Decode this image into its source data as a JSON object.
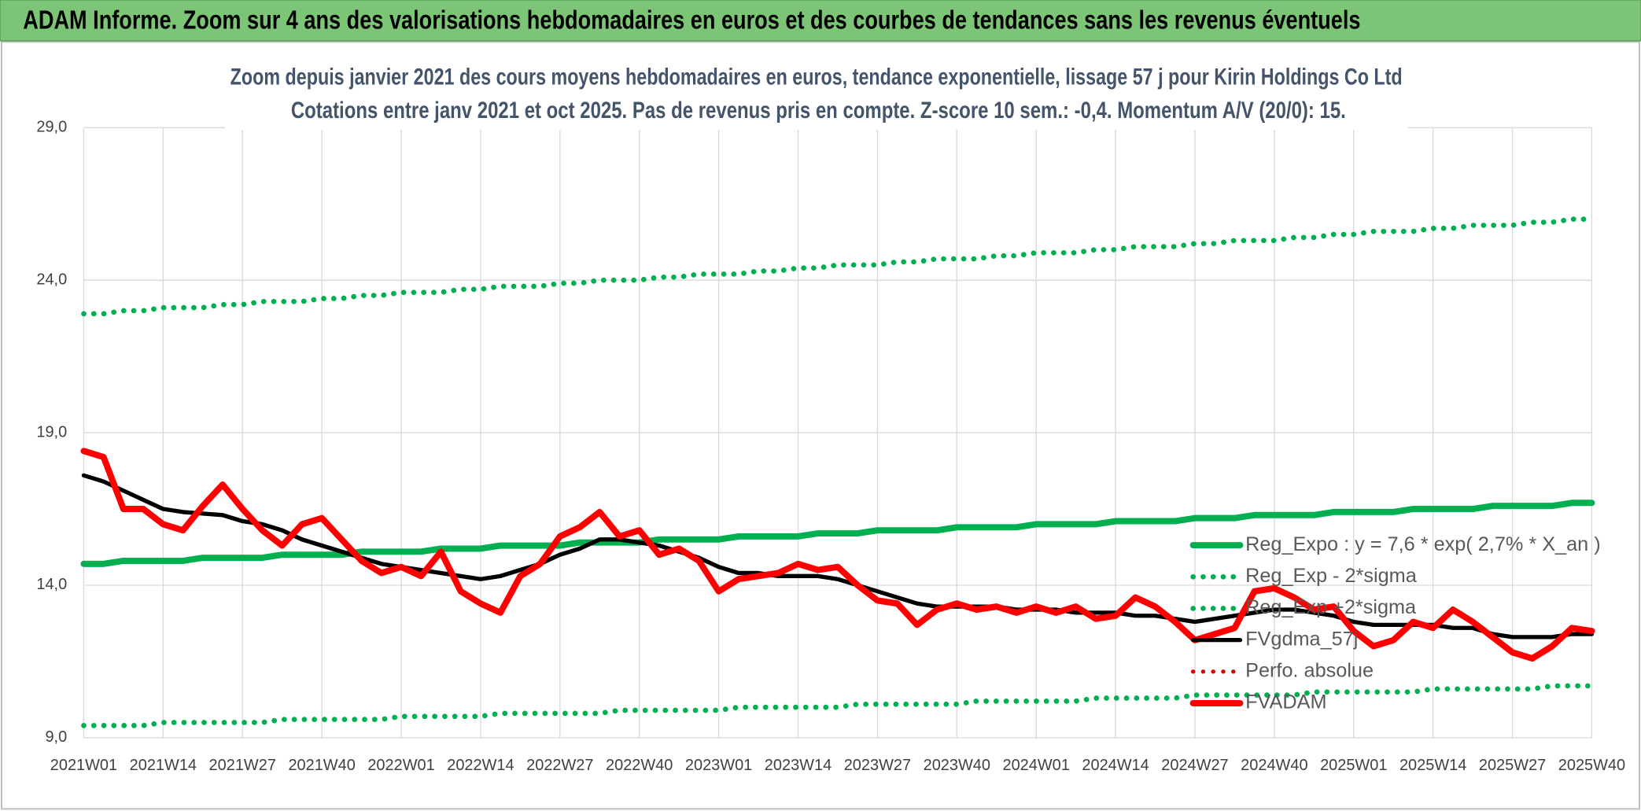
{
  "header": {
    "title": "ADAM Informe. Zoom sur 4 ans des valorisations hebdomadaires en euros et des courbes de tendances sans les revenus éventuels"
  },
  "chart_data": {
    "type": "line",
    "title": "Zoom depuis janvier 2021 des cours moyens hebdomadaires en euros, tendance exponentielle, lissage 57 j pour Kirin Holdings Co Ltd",
    "subtitle": "Cotations entre janv 2021 et oct 2025. Pas de revenus pris en compte. Z-score 10 sem.: -0,4. Momentum A/V (20/0): 15.",
    "categories": [
      "2021W01",
      null,
      null,
      null,
      "2021W14",
      null,
      null,
      null,
      "2021W27",
      null,
      null,
      null,
      "2021W40",
      null,
      null,
      null,
      "2022W01",
      null,
      null,
      null,
      "2022W14",
      null,
      null,
      null,
      "2022W27",
      null,
      null,
      null,
      "2022W40",
      null,
      null,
      null,
      "2023W01",
      null,
      null,
      null,
      "2023W14",
      null,
      null,
      null,
      "2023W27",
      null,
      null,
      null,
      "2023W40",
      null,
      null,
      null,
      "2024W01",
      null,
      null,
      null,
      "2024W14",
      null,
      null,
      null,
      "2024W27",
      null,
      null,
      null,
      "2024W40",
      null,
      null,
      null,
      "2025W01",
      null,
      null,
      null,
      "2025W14",
      null,
      null,
      null,
      "2025W27",
      null,
      null,
      null,
      "2025W40"
    ],
    "ylim": [
      9,
      29
    ],
    "yticks": [
      {
        "value": 9,
        "label": "9,0"
      },
      {
        "value": 14,
        "label": "14,0"
      },
      {
        "value": 19,
        "label": "19,0"
      },
      {
        "value": 24,
        "label": "24,0"
      },
      {
        "value": 29,
        "label": "29,0"
      }
    ],
    "grid": true,
    "legend": "right",
    "series": [
      {
        "name": "Reg_Expo : y = 7,6 * exp( 2,7% *  X_an )",
        "color": "#00b050",
        "dash": "solid",
        "values": [
          14.7,
          14.7,
          14.8,
          14.8,
          14.8,
          14.8,
          14.9,
          14.9,
          14.9,
          14.9,
          15.0,
          15.0,
          15.0,
          15.0,
          15.1,
          15.1,
          15.1,
          15.1,
          15.2,
          15.2,
          15.2,
          15.3,
          15.3,
          15.3,
          15.3,
          15.4,
          15.4,
          15.4,
          15.4,
          15.5,
          15.5,
          15.5,
          15.5,
          15.6,
          15.6,
          15.6,
          15.6,
          15.7,
          15.7,
          15.7,
          15.8,
          15.8,
          15.8,
          15.8,
          15.9,
          15.9,
          15.9,
          15.9,
          16.0,
          16.0,
          16.0,
          16.0,
          16.1,
          16.1,
          16.1,
          16.1,
          16.2,
          16.2,
          16.2,
          16.3,
          16.3,
          16.3,
          16.3,
          16.4,
          16.4,
          16.4,
          16.4,
          16.5,
          16.5,
          16.5,
          16.5,
          16.6,
          16.6,
          16.6,
          16.6,
          16.7,
          16.7
        ]
      },
      {
        "name": "Reg_Exp - 2*sigma",
        "color": "#00b050",
        "dash": "dotted",
        "values": [
          9.4,
          9.4,
          9.4,
          9.4,
          9.5,
          9.5,
          9.5,
          9.5,
          9.5,
          9.5,
          9.6,
          9.6,
          9.6,
          9.6,
          9.6,
          9.6,
          9.7,
          9.7,
          9.7,
          9.7,
          9.7,
          9.8,
          9.8,
          9.8,
          9.8,
          9.8,
          9.8,
          9.9,
          9.9,
          9.9,
          9.9,
          9.9,
          9.9,
          10.0,
          10.0,
          10.0,
          10.0,
          10.0,
          10.0,
          10.1,
          10.1,
          10.1,
          10.1,
          10.1,
          10.1,
          10.2,
          10.2,
          10.2,
          10.2,
          10.2,
          10.2,
          10.3,
          10.3,
          10.3,
          10.3,
          10.3,
          10.4,
          10.4,
          10.4,
          10.4,
          10.4,
          10.4,
          10.5,
          10.5,
          10.5,
          10.5,
          10.5,
          10.5,
          10.6,
          10.6,
          10.6,
          10.6,
          10.6,
          10.6,
          10.7,
          10.7,
          10.7
        ]
      },
      {
        "name": "Reg_Exp +2*sigma",
        "color": "#00b050",
        "dash": "dotted",
        "values": [
          22.9,
          22.9,
          23.0,
          23.0,
          23.1,
          23.1,
          23.1,
          23.2,
          23.2,
          23.3,
          23.3,
          23.3,
          23.4,
          23.4,
          23.5,
          23.5,
          23.6,
          23.6,
          23.6,
          23.7,
          23.7,
          23.8,
          23.8,
          23.8,
          23.9,
          23.9,
          24.0,
          24.0,
          24.0,
          24.1,
          24.1,
          24.2,
          24.2,
          24.2,
          24.3,
          24.3,
          24.4,
          24.4,
          24.5,
          24.5,
          24.5,
          24.6,
          24.6,
          24.7,
          24.7,
          24.7,
          24.8,
          24.8,
          24.9,
          24.9,
          24.9,
          25.0,
          25.0,
          25.1,
          25.1,
          25.1,
          25.2,
          25.2,
          25.3,
          25.3,
          25.3,
          25.4,
          25.4,
          25.5,
          25.5,
          25.6,
          25.6,
          25.6,
          25.7,
          25.7,
          25.8,
          25.8,
          25.8,
          25.9,
          25.9,
          26.0,
          26.0
        ]
      },
      {
        "name": "FVgdma_57j",
        "color": "#000000",
        "dash": "solid",
        "values": [
          17.6,
          17.4,
          17.1,
          16.8,
          16.5,
          16.4,
          16.35,
          16.3,
          16.1,
          16.0,
          15.8,
          15.5,
          15.3,
          15.1,
          14.9,
          14.7,
          14.6,
          14.5,
          14.4,
          14.3,
          14.2,
          14.3,
          14.5,
          14.7,
          15.0,
          15.2,
          15.5,
          15.5,
          15.4,
          15.3,
          15.1,
          14.9,
          14.6,
          14.4,
          14.4,
          14.3,
          14.3,
          14.3,
          14.2,
          14.0,
          13.8,
          13.6,
          13.4,
          13.3,
          13.3,
          13.3,
          13.3,
          13.2,
          13.2,
          13.2,
          13.1,
          13.1,
          13.1,
          13.0,
          13.0,
          12.9,
          12.8,
          12.9,
          13.0,
          13.1,
          13.2,
          13.2,
          13.1,
          13.0,
          12.8,
          12.7,
          12.7,
          12.7,
          12.7,
          12.6,
          12.6,
          12.4,
          12.3,
          12.3,
          12.3,
          12.4,
          12.4
        ]
      },
      {
        "name": "Perfo. absolue",
        "color": "#e00000",
        "dash": "dotted",
        "values": [
          null,
          null,
          null,
          null,
          null,
          null,
          null,
          null,
          null,
          null,
          null,
          null,
          null,
          null,
          null,
          null,
          null,
          null,
          null,
          null,
          null,
          null,
          null,
          null,
          null,
          null,
          null,
          null,
          null,
          null,
          null,
          null,
          null,
          null,
          null,
          null,
          null,
          null,
          null,
          null,
          null,
          null,
          null,
          null,
          null,
          null,
          null,
          null,
          null,
          null,
          null,
          null,
          null,
          null,
          null,
          null,
          null,
          null,
          null,
          null,
          null,
          null,
          null,
          null,
          null,
          null,
          null,
          null,
          null,
          null,
          null,
          null,
          null,
          null,
          null,
          null,
          null
        ]
      },
      {
        "name": "FVADAM",
        "color": "#ff0000",
        "dash": "solid",
        "values": [
          18.4,
          18.2,
          16.5,
          16.5,
          16.0,
          15.8,
          16.6,
          17.3,
          16.5,
          15.8,
          15.3,
          16.0,
          16.2,
          15.5,
          14.8,
          14.4,
          14.6,
          14.3,
          15.1,
          13.8,
          13.4,
          13.1,
          14.3,
          14.7,
          15.6,
          15.9,
          16.4,
          15.6,
          15.8,
          15.0,
          15.2,
          14.8,
          13.8,
          14.2,
          14.3,
          14.4,
          14.7,
          14.5,
          14.6,
          14.0,
          13.5,
          13.4,
          12.7,
          13.2,
          13.4,
          13.2,
          13.3,
          13.1,
          13.3,
          13.1,
          13.3,
          12.9,
          13.0,
          13.6,
          13.3,
          12.8,
          12.2,
          12.4,
          12.6,
          13.8,
          13.9,
          13.6,
          13.2,
          13.3,
          12.5,
          12.0,
          12.2,
          12.8,
          12.6,
          13.2,
          12.8,
          12.3,
          11.8,
          11.6,
          12.0,
          12.6,
          12.5
        ]
      }
    ]
  }
}
